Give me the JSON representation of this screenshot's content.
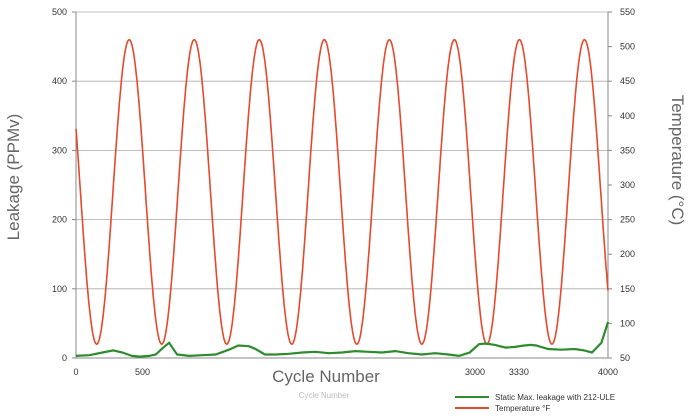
{
  "chart_data": {
    "type": "line",
    "xlabel": "Cycle Number",
    "ylabel": "Leakage (PPMv)",
    "y2label": "Temperature (°C)",
    "faint_caption": "Cycle Number",
    "xlim": [
      0,
      4000
    ],
    "ylim": [
      0,
      500
    ],
    "y2lim": [
      50,
      550
    ],
    "x_ticks": [
      {
        "value": 0,
        "label": "0"
      },
      {
        "value": 500,
        "label": "500"
      },
      {
        "value": 3000,
        "label": "3000"
      },
      {
        "value": 3330,
        "label": "3330"
      },
      {
        "value": 4000,
        "label": "4000"
      }
    ],
    "y_ticks": [
      0,
      100,
      200,
      300,
      400,
      500
    ],
    "y2_ticks": [
      50,
      100,
      150,
      200,
      250,
      300,
      350,
      400,
      450,
      500,
      550
    ],
    "grid": true,
    "legend_position": "bottom-right",
    "colors": {
      "leakage": "#2e8b2e",
      "temperature": "#e8482b",
      "grid": "#aaaaaa",
      "axes": "#888888"
    },
    "series": [
      {
        "name": "Static Max. leakage with 212-ULE",
        "axis": "left",
        "x": [
          0,
          100,
          200,
          280,
          350,
          420,
          480,
          550,
          600,
          650,
          700,
          760,
          850,
          950,
          1050,
          1150,
          1220,
          1300,
          1350,
          1420,
          1500,
          1600,
          1700,
          1800,
          1900,
          2000,
          2100,
          2200,
          2300,
          2400,
          2500,
          2600,
          2700,
          2800,
          2880,
          2960,
          3030,
          3080,
          3150,
          3230,
          3300,
          3370,
          3420,
          3460,
          3550,
          3650,
          3750,
          3820,
          3880,
          3950,
          4000
        ],
        "values": [
          3,
          4,
          8,
          11,
          8,
          3,
          2,
          3,
          5,
          14,
          22,
          5,
          3,
          4,
          5,
          12,
          18,
          17,
          13,
          5,
          5,
          6,
          8,
          9,
          7,
          8,
          10,
          9,
          8,
          10,
          7,
          5,
          7,
          5,
          3,
          8,
          20,
          21,
          19,
          15,
          16,
          18,
          19,
          18,
          13,
          12,
          13,
          11,
          8,
          22,
          52
        ]
      },
      {
        "name": "Temperature °F",
        "axis": "right",
        "y_min": 70,
        "y_max": 510,
        "peaks": [
          400,
          889,
          1378,
          1867,
          2356,
          2845,
          3334,
          3823
        ],
        "period": 489,
        "start": 0,
        "end": 4000
      }
    ]
  }
}
